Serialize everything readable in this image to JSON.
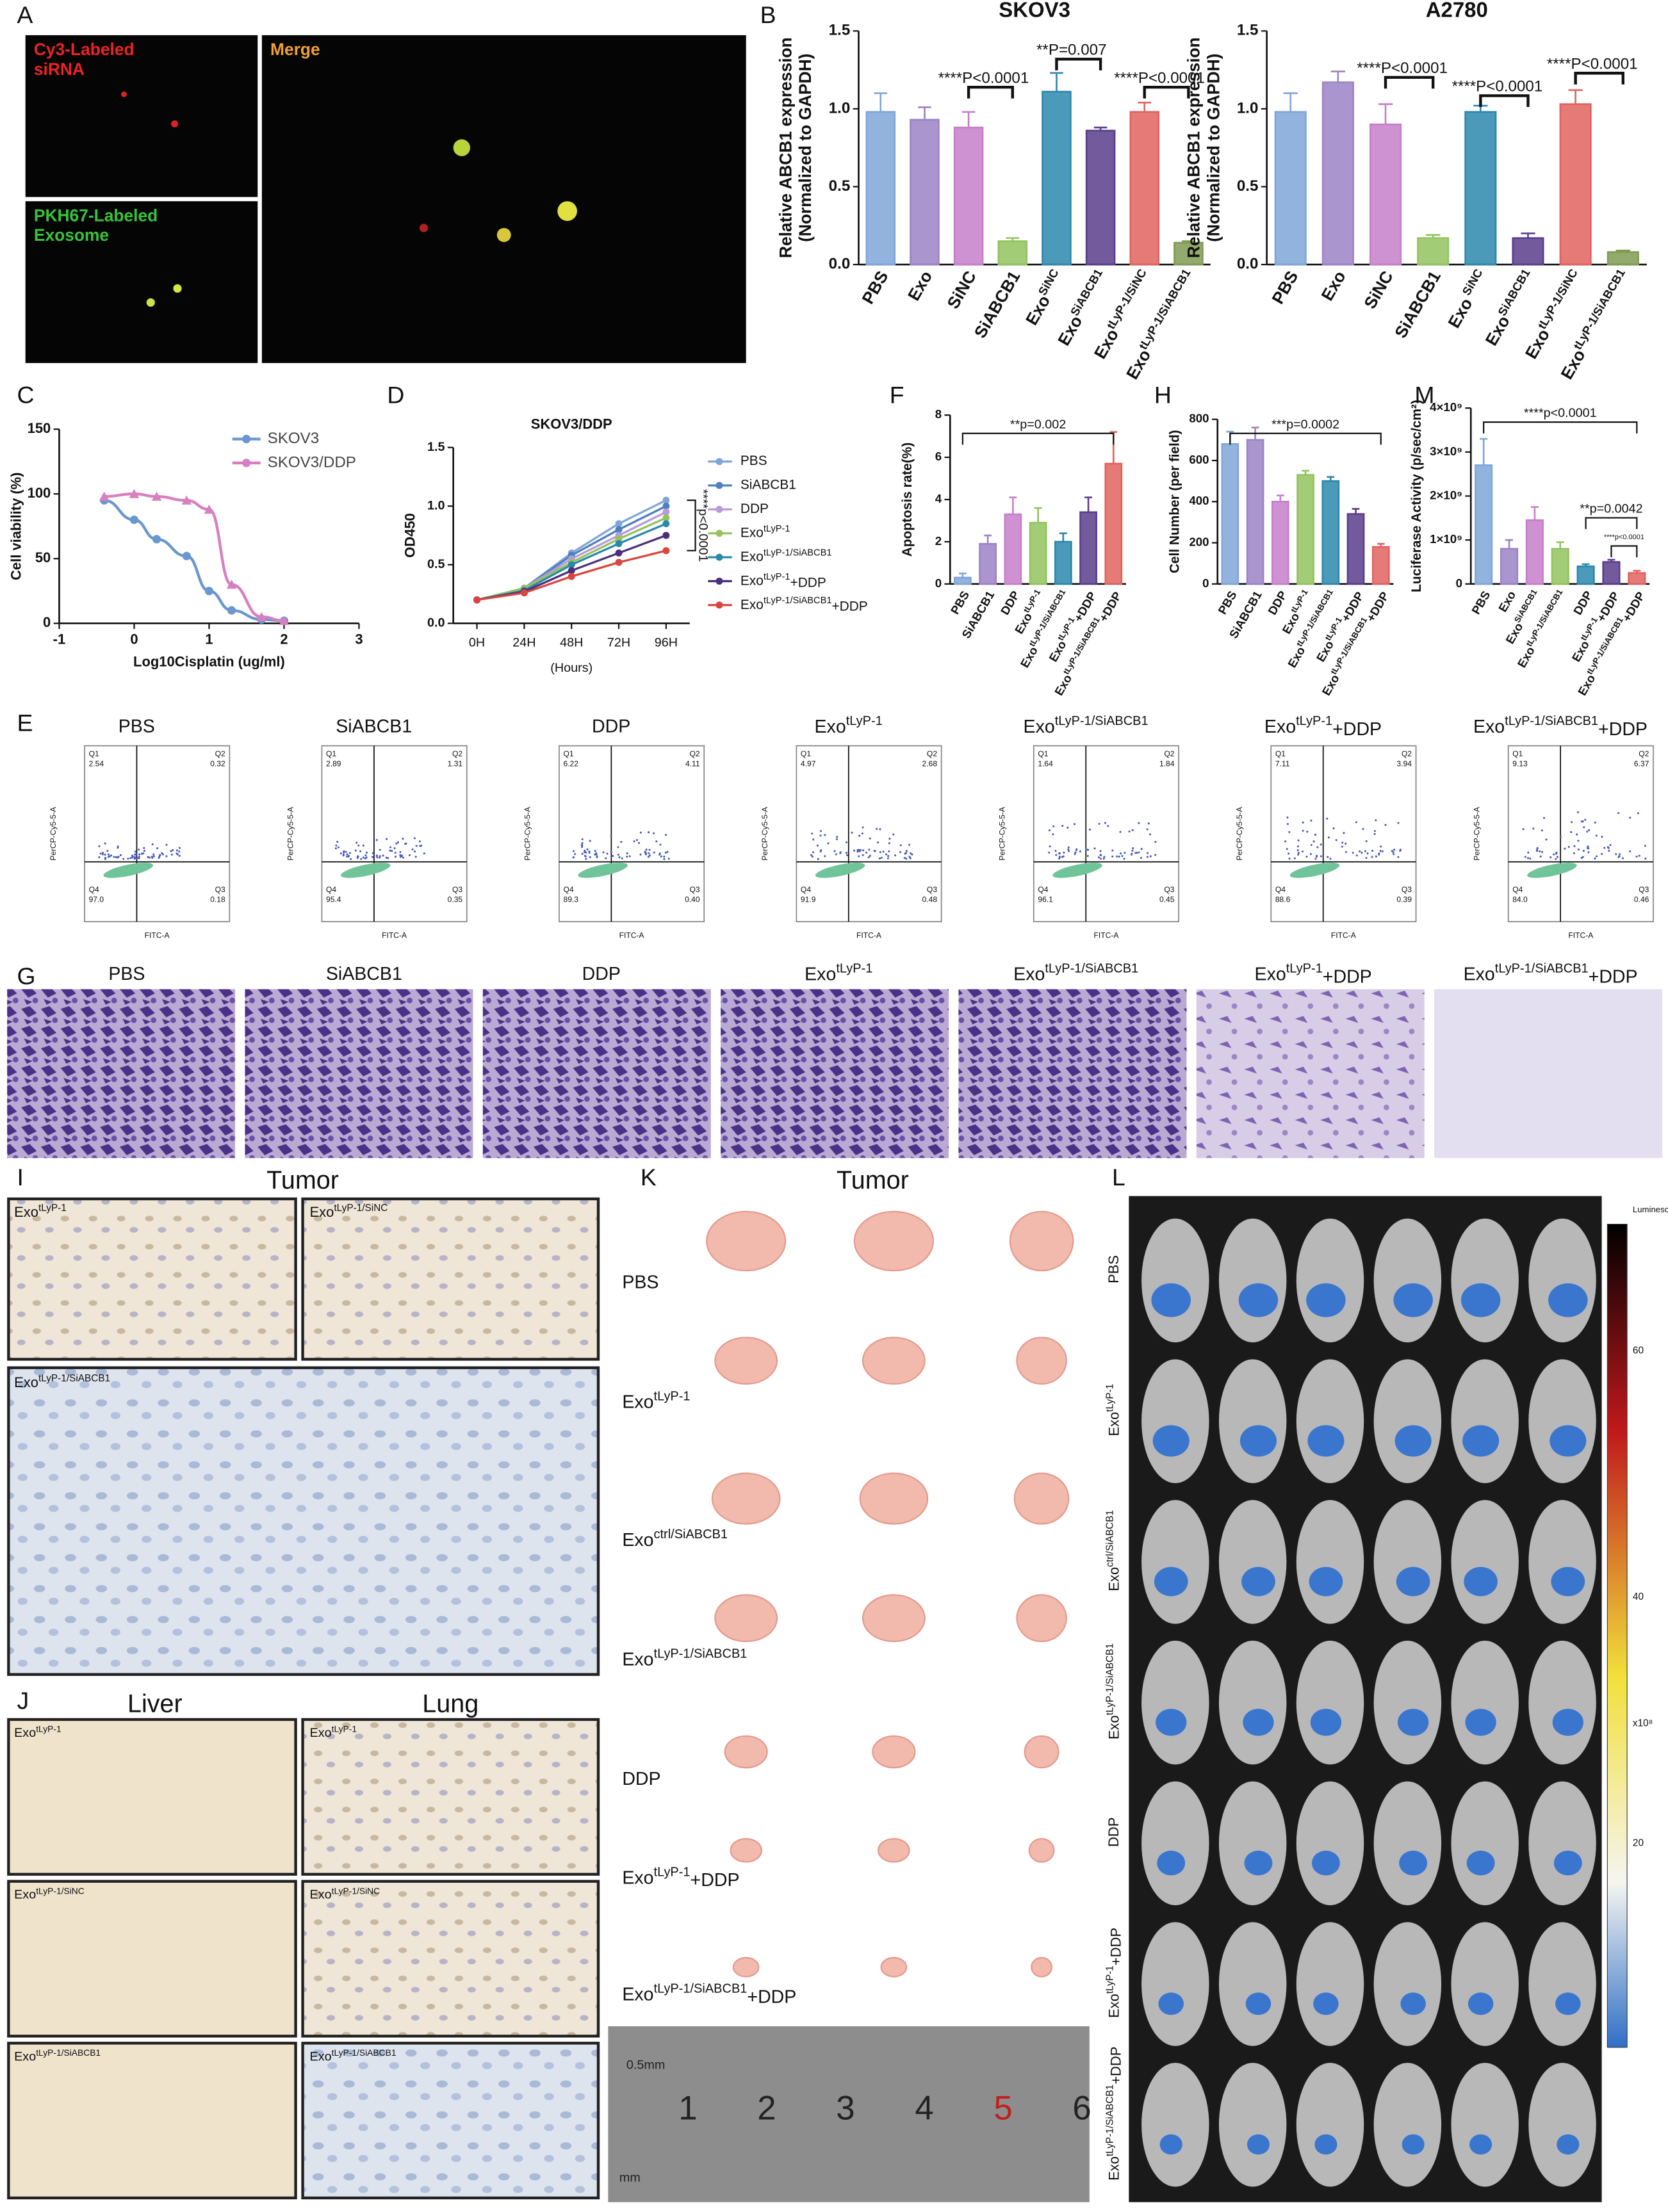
{
  "panel_letters": [
    "A",
    "B",
    "C",
    "D",
    "F",
    "H",
    "M",
    "E",
    "G",
    "I",
    "K",
    "L",
    "J"
  ],
  "panel_a": {
    "labels": [
      [
        "Cy3-Labeled",
        "siRNA"
      ],
      [
        "Merge"
      ],
      [
        "PKH67-Labeled",
        "Exosome"
      ]
    ]
  },
  "flow": {
    "x_label": "FITC-A",
    "y_label": "PerCP-Cy5-5-A",
    "quadrant_names": [
      "Q1",
      "Q2",
      "Q3",
      "Q4"
    ],
    "panels": [
      {
        "title": "PBS",
        "quadrants": [
          "2.54",
          "0.32",
          "0.18",
          "97.0"
        ]
      },
      {
        "title": "SiABCB1",
        "quadrants": [
          "2.89",
          "1.31",
          "0.35",
          "95.4"
        ]
      },
      {
        "title": "DDP",
        "quadrants": [
          "6.22",
          "4.11",
          "0.40",
          "89.3"
        ]
      },
      {
        "title": "ExotLyP-1",
        "quadrants": [
          "4.97",
          "2.68",
          "0.48",
          "91.9"
        ]
      },
      {
        "title": "ExotLyP-1/SiABCB1",
        "quadrants": [
          "1.64",
          "1.84",
          "0.45",
          "96.1"
        ]
      },
      {
        "title": "ExotLyP-1+DDP",
        "quadrants": [
          "7.11",
          "3.94",
          "0.39",
          "88.6"
        ]
      },
      {
        "title": "ExotLyP-1/SiABCB1+DDP",
        "quadrants": [
          "9.13",
          "6.37",
          "0.46",
          "84.0"
        ]
      }
    ]
  },
  "panel_i": {
    "title": "Tumor",
    "labels": [
      "ExotLyP-1",
      "ExotLyP-1/SiNC",
      "ExotLyP-1/SiABCB1"
    ]
  },
  "panel_j": {
    "titles": [
      "Liver",
      "Lung"
    ],
    "labels": [
      "ExotLyP-1",
      "ExotLyP-1/SiNC",
      "ExotLyP-1/SiABCB1"
    ]
  },
  "panel_k": {
    "title": "Tumor",
    "labels": [
      "PBS",
      "ExotLyP-1",
      "Exoctrl/SiABCB1",
      "ExotLyP-1/SiABCB1",
      "DDP",
      "ExotLyP-1+DDP",
      "ExotLyP-1/SiABCB1+DDP"
    ],
    "ruler": [
      "0.5mm",
      "1",
      "2",
      "3",
      "4",
      "5",
      "6",
      "mm"
    ]
  },
  "panel_l": {
    "labels": [
      "PBS",
      "ExotLyP-1",
      "Exoctrl/SiABCB1",
      "ExotLyP-1/SiABCB1",
      "DDP",
      "ExotLyP-1+DDP",
      "ExotLyP-1/SiABCB1+DDP"
    ],
    "colorbar_title": "Luminescence",
    "colorbar_ticks": [
      "60",
      "40",
      "20"
    ],
    "colorbar_unit": "x10⁸"
  },
  "chart_data": [
    {
      "type": "bar",
      "title": "SKOV3",
      "y_label": [
        "Relative ABCB1 expression",
        "(Normalized to GAPDH)"
      ],
      "categories": [
        "PBS",
        "Exo",
        "SiNC",
        "SiABCB1",
        "ExoSiNC",
        "ExoSiABCB1",
        "ExotLyP-1/SiNC",
        "ExotLyP-1/SiABCB1"
      ],
      "values": [
        0.98,
        0.93,
        0.88,
        0.15,
        1.11,
        0.86,
        0.98,
        0.14
      ],
      "errors": [
        0.12,
        0.08,
        0.1,
        0.02,
        0.12,
        0.02,
        0.06,
        0.01
      ],
      "colors": [
        "#7fa6d8",
        "#9c83c6",
        "#c57fcb",
        "#93c35f",
        "#2b88ad",
        "#5b3d8c",
        "#e0635f",
        "#7f9b52"
      ],
      "ylim": [
        0,
        1.5
      ],
      "yticks": [
        {
          "value": 0,
          "label": "0.0"
        },
        0.5,
        {
          "value": 1,
          "label": "1.0"
        },
        1.5
      ],
      "annotations": [
        "****P<0.0001",
        "**P=0.007",
        "****P<0.0001"
      ]
    },
    {
      "type": "bar",
      "title": "A2780",
      "y_label": [
        "Relative ABCB1 expression",
        "(Normalized to GAPDH)"
      ],
      "categories": [
        "PBS",
        "Exo",
        "SiNC",
        "SiABCB1",
        "Exo SiNC",
        "ExoSiABCB1",
        "ExotLyP-1/SiNC",
        "ExotLyP-1/SiABCB1"
      ],
      "values": [
        0.98,
        1.17,
        0.9,
        0.17,
        0.98,
        0.17,
        1.03,
        0.08
      ],
      "errors": [
        0.12,
        0.07,
        0.13,
        0.02,
        0.04,
        0.03,
        0.09,
        0.01
      ],
      "colors": [
        "#7fa6d8",
        "#9c83c6",
        "#c57fcb",
        "#93c35f",
        "#2b88ad",
        "#5b3d8c",
        "#e0635f",
        "#7f9b52"
      ],
      "ylim": [
        0,
        1.5
      ],
      "yticks": [
        {
          "value": 0,
          "label": "0.0"
        },
        0.5,
        {
          "value": 1,
          "label": "1.0"
        },
        1.5
      ],
      "annotations": [
        "****P<0.0001",
        "****P<0.0001",
        "****P<0.0001"
      ]
    },
    {
      "type": "curve",
      "x_label": "Log10Cisplatin (ug/ml)",
      "y_label": "Cell viability (%)",
      "xlim": [
        -1,
        3
      ],
      "xticks": [
        -1,
        0,
        1,
        2,
        3
      ],
      "ylim": [
        0,
        150
      ],
      "yticks": [
        0,
        50,
        100,
        150
      ],
      "series": [
        {
          "name": "SKOV3",
          "color": "#6a97cf",
          "x": [
            -0.4,
            0,
            0.3,
            0.7,
            1,
            1.3,
            1.7,
            2
          ],
          "values": [
            95,
            80,
            65,
            52,
            25,
            10,
            3,
            2
          ]
        },
        {
          "name": "SKOV3/DDP",
          "color": "#d87fc0",
          "x": [
            -0.4,
            0,
            0.3,
            0.7,
            1,
            1.3,
            1.7,
            2
          ],
          "values": [
            98,
            100,
            98,
            95,
            88,
            30,
            5,
            2
          ]
        }
      ]
    },
    {
      "type": "line",
      "title": "SKOV3/DDP",
      "x_label": "(Hours)",
      "y_label": "OD450",
      "categories": [
        "0H",
        "24H",
        "48H",
        "72H",
        "96H"
      ],
      "ylim": [
        0,
        1.5
      ],
      "yticks": [
        {
          "value": 0,
          "label": "0.0"
        },
        0.5,
        {
          "value": 1,
          "label": "1.0"
        },
        1.5
      ],
      "annotations": [
        "****p<0.0001"
      ],
      "series": [
        {
          "name": "PBS",
          "color": "#7fa6d8",
          "values": [
            0.2,
            0.3,
            0.6,
            0.85,
            1.05
          ]
        },
        {
          "name": "SiABCB1",
          "color": "#4f7fc0",
          "values": [
            0.2,
            0.3,
            0.58,
            0.8,
            1.0
          ]
        },
        {
          "name": "DDP",
          "color": "#b79ad8",
          "values": [
            0.2,
            0.3,
            0.55,
            0.75,
            0.95
          ]
        },
        {
          "name": "ExotLyP-1",
          "color": "#93c35f",
          "values": [
            0.2,
            0.3,
            0.52,
            0.72,
            0.9
          ]
        },
        {
          "name": "ExotLyP-1/SiABCB1",
          "color": "#2b88ad",
          "values": [
            0.2,
            0.28,
            0.5,
            0.68,
            0.85
          ]
        },
        {
          "name": "ExotLyP-1+DDP",
          "color": "#4b2f7c",
          "values": [
            0.2,
            0.27,
            0.45,
            0.6,
            0.75
          ]
        },
        {
          "name": "ExotLyP-1/SiABCB1+DDP",
          "color": "#d9453f",
          "values": [
            0.2,
            0.26,
            0.4,
            0.52,
            0.62
          ]
        }
      ]
    },
    {
      "type": "bar",
      "y_label": [
        "Apoptosis rate(%)"
      ],
      "categories": [
        "PBS",
        "SiABCB1",
        "DDP",
        "ExotLyP-1",
        "ExotLyP-1/SiABCB1",
        "ExotLyP-1+DDP",
        "ExotLyP-1/SiABCB1+DDP"
      ],
      "values": [
        0.3,
        1.9,
        3.3,
        2.9,
        2.0,
        3.4,
        5.7
      ],
      "errors": [
        0.2,
        0.4,
        0.8,
        0.7,
        0.4,
        0.7,
        1.5
      ],
      "colors": [
        "#7fa6d8",
        "#9c83c6",
        "#c57fcb",
        "#93c35f",
        "#2b88ad",
        "#5b3d8c",
        "#e0635f"
      ],
      "ylim": [
        0,
        8
      ],
      "yticks": [
        0,
        2,
        4,
        6,
        8
      ],
      "annotations": [
        "**p=0.002"
      ]
    },
    {
      "type": "bar",
      "y_label": [
        "Cell Number (per field)"
      ],
      "categories": [
        "PBS",
        "SiABCB1",
        "DDP",
        "ExotLyP-1",
        "ExotLyP-1/SiABCB1",
        "ExotLyP-1+DDP",
        "ExotLyP-1/SiABCB1+DDP"
      ],
      "values": [
        680,
        700,
        400,
        530,
        500,
        340,
        180
      ],
      "errors": [
        60,
        60,
        30,
        20,
        20,
        25,
        15
      ],
      "colors": [
        "#7fa6d8",
        "#9c83c6",
        "#c57fcb",
        "#93c35f",
        "#2b88ad",
        "#5b3d8c",
        "#e0635f"
      ],
      "ylim": [
        0,
        800
      ],
      "yticks": [
        0,
        200,
        400,
        600,
        800
      ],
      "annotations": [
        "***p=0.0002"
      ]
    },
    {
      "type": "bar",
      "y_label": [
        "Luciferase Activity (p/sec/cm²)"
      ],
      "categories": [
        "PBS",
        "Exo",
        "ExoSiABCB1",
        "ExotLyP-1/SiABCB1",
        "DDP",
        "ExotLyP-1+DDP",
        "ExotLyP-1/SiABCB1+DDP"
      ],
      "values": [
        2700000000,
        800000000,
        1450000000,
        800000000,
        400000000,
        500000000,
        250000000
      ],
      "errors": [
        600000000,
        200000000,
        300000000,
        150000000,
        50000000,
        50000000,
        50000000
      ],
      "colors": [
        "#7fa6d8",
        "#9c83c6",
        "#c57fcb",
        "#93c35f",
        "#2b88ad",
        "#5b3d8c",
        "#e0635f"
      ],
      "ylim": [
        0,
        4000000000
      ],
      "yticks": [
        0,
        {
          "value": 1000000000,
          "label": "1×10⁹"
        },
        {
          "value": 2000000000,
          "label": "2×10⁹"
        },
        {
          "value": 3000000000,
          "label": "3×10⁹"
        },
        {
          "value": 4000000000,
          "label": "4×10⁹"
        }
      ],
      "annotations": [
        "****p<0.0001",
        "**p=0.0042",
        "****p<0.0001"
      ]
    }
  ]
}
